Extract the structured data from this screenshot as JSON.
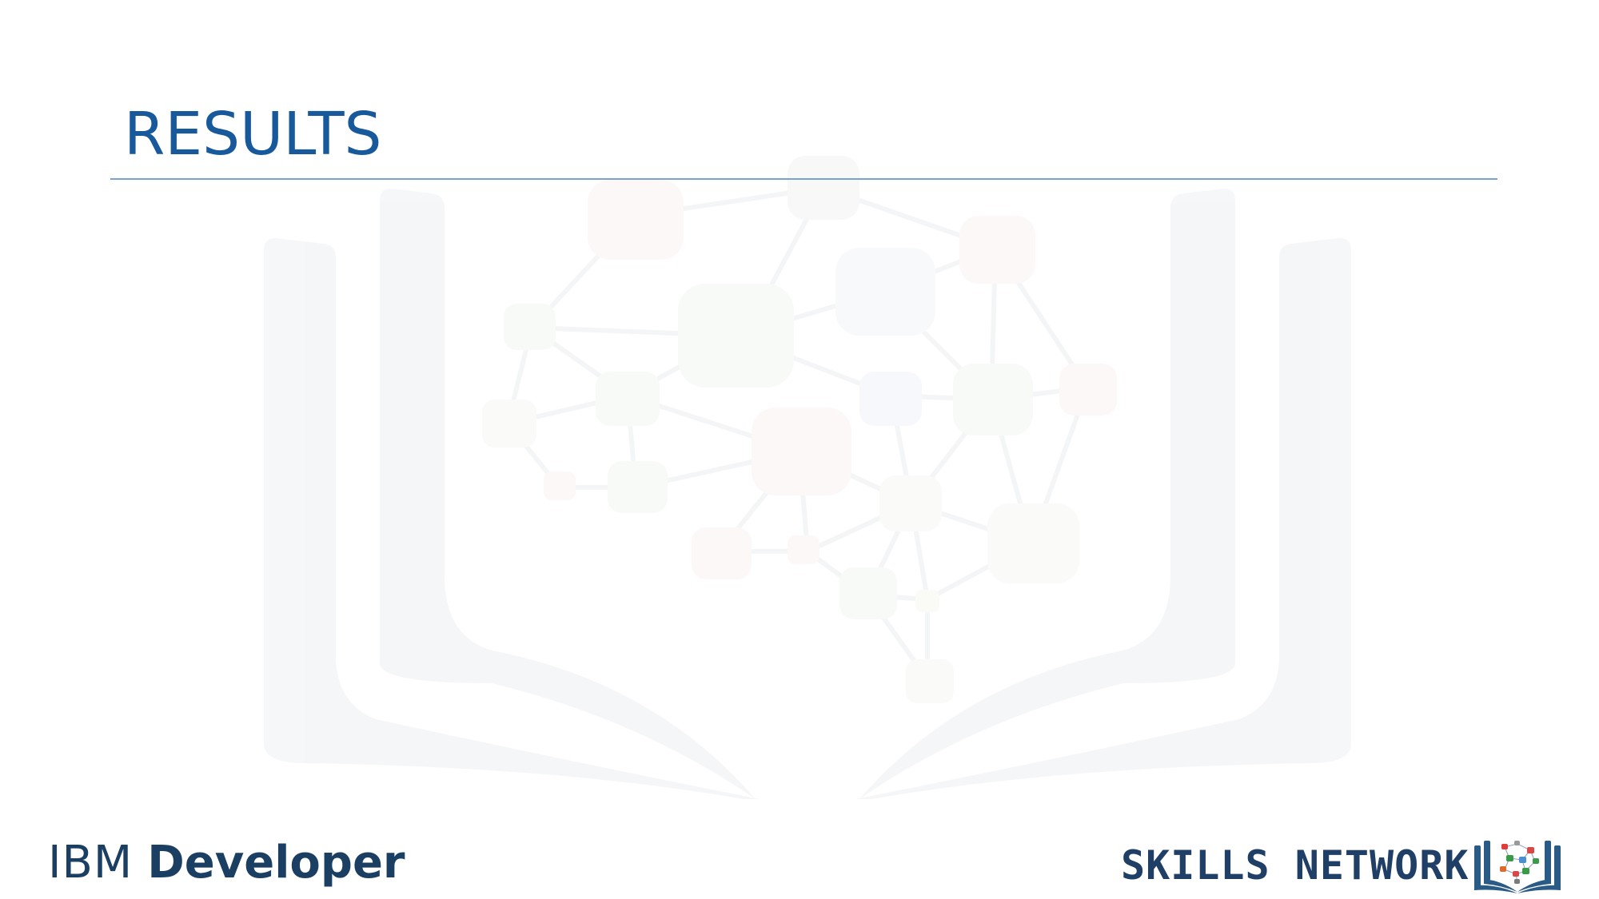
{
  "slide": {
    "title": "RESULTS"
  },
  "footer": {
    "left_logo": {
      "part1": "IBM",
      "part2": "Developer"
    },
    "right_logo": {
      "text": "SKILLS NETWORK"
    }
  },
  "icons": {
    "watermark": "open-book-network-illustration",
    "skills_network": "book-network-icon"
  },
  "colors": {
    "title": "#17599a",
    "rule": "#7e9fd3",
    "logo_text": "#1b3f63"
  }
}
